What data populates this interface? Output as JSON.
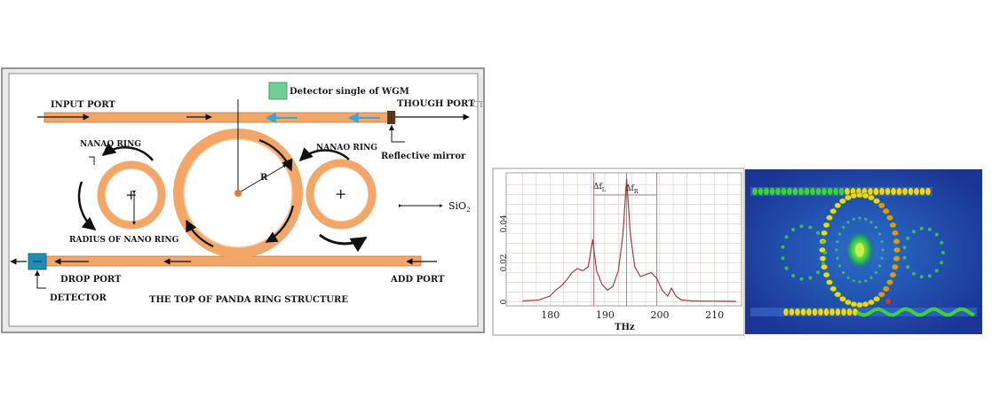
{
  "panda": {
    "input_port": "INPUT PORT",
    "through_port": "THOUGH PORT",
    "through_port_suffix": "CT",
    "detector_wgm": "Detector single of WGM",
    "reflective_mirror": "Reflective mirror",
    "nanao_ring_left": "NANAO RING",
    "nanao_ring_right": "NANAO RING",
    "radius_nano_ring": "RADIUS OF NANO RING",
    "r_label": "R",
    "sio2_base": "SiO",
    "sio2_sub": "2",
    "drop_port": "DROP PORT",
    "detector": "DETECTOR",
    "add_port": "ADD PORT",
    "caption": "THE TOP OF PANDA RING STRUCTURE",
    "colors": {
      "waveguide": "#f2a768",
      "detector_green": "#6fcf97",
      "detector_blue": "#1c8fb7",
      "cyan_arrow": "#3aa7d8"
    }
  },
  "chart_data": {
    "type": "line",
    "xlabel": "THz",
    "ylabel": "",
    "xlim": [
      172,
      215
    ],
    "ylim": [
      -0.002,
      0.066
    ],
    "xticks": [
      180,
      190,
      200,
      210
    ],
    "yticks": [
      0,
      0.02,
      0.04
    ],
    "ytick_labels": [
      "0",
      "0.02",
      "0.04"
    ],
    "grid": true,
    "annotations": {
      "delta1_base": "Δf",
      "delta1_sub": "L",
      "delta2_base": "Δf",
      "delta2_sub": "R"
    },
    "vlines": [
      188.0,
      194.0,
      199.5
    ],
    "x": [
      175,
      178,
      180,
      181,
      182,
      183,
      184,
      185,
      186,
      187,
      187.8,
      188.5,
      189.5,
      190.5,
      191.5,
      192.5,
      193.3,
      194.0,
      194.7,
      195.5,
      196.5,
      197.5,
      198.5,
      199.5,
      200.5,
      201.5,
      202.2,
      203,
      204,
      206,
      208,
      210,
      212,
      214
    ],
    "y": [
      0.0005,
      0.001,
      0.003,
      0.006,
      0.008,
      0.011,
      0.015,
      0.017,
      0.016,
      0.018,
      0.032,
      0.016,
      0.009,
      0.006,
      0.008,
      0.016,
      0.034,
      0.063,
      0.034,
      0.018,
      0.013,
      0.014,
      0.015,
      0.012,
      0.006,
      0.003,
      0.007,
      0.003,
      0.001,
      0.0005,
      0.0004,
      0.0004,
      0.0003,
      0.0003
    ]
  },
  "field_map": {
    "colors": {
      "background": "#1f3fa6",
      "hot": "#ffd21a",
      "warm": "#3dd13d",
      "core": "#d83a1a"
    }
  }
}
